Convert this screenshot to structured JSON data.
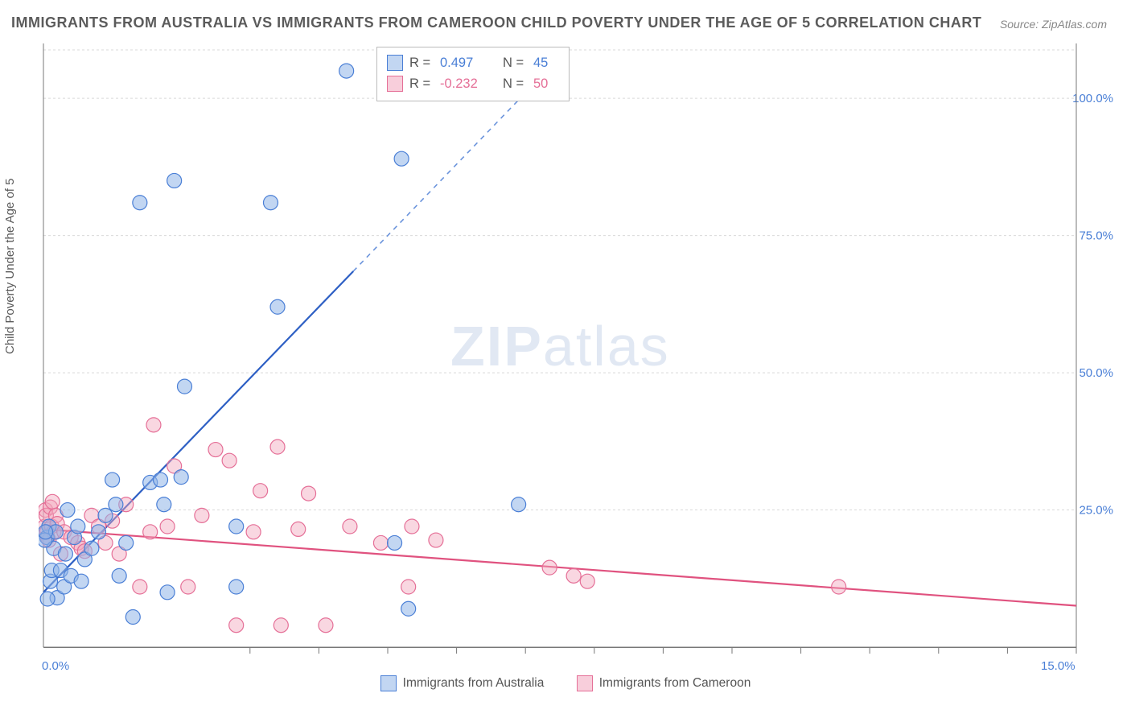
{
  "title": "IMMIGRANTS FROM AUSTRALIA VS IMMIGRANTS FROM CAMEROON CHILD POVERTY UNDER THE AGE OF 5 CORRELATION CHART",
  "source_label": "Source:",
  "source_value": "ZipAtlas.com",
  "ylabel": "Child Poverty Under the Age of 5",
  "watermark_bold": "ZIP",
  "watermark_light": "atlas",
  "chart": {
    "type": "scatter",
    "xlim": [
      0,
      15
    ],
    "ylim": [
      0,
      110
    ],
    "y_ticks": [
      25,
      50,
      75,
      100
    ],
    "y_tick_labels": [
      "25.0%",
      "50.0%",
      "75.0%",
      "100.0%"
    ],
    "x_tick_values": [
      0,
      15
    ],
    "x_tick_labels": [
      "0.0%",
      "15.0%"
    ],
    "x_minor_tick_step": 1,
    "x_minor_tick_start": 3,
    "x_minor_tick_end": 15,
    "background_color": "#ffffff",
    "grid_color": "#d9d9d9",
    "marker_radius": 9,
    "series_a": {
      "label": "Immigrants from Australia",
      "color_fill": "#8fb5e8",
      "color_stroke": "#4a7fd6",
      "R_label": "R =",
      "R": "0.497",
      "N_label": "N =",
      "N": "45",
      "reg_slope": 13.0,
      "reg_intercept": 10.0,
      "reg_solid_xmax": 4.5,
      "points": [
        [
          0.05,
          20
        ],
        [
          0.08,
          22
        ],
        [
          0.1,
          12
        ],
        [
          0.12,
          14
        ],
        [
          0.15,
          18
        ],
        [
          0.18,
          21
        ],
        [
          0.2,
          9
        ],
        [
          0.25,
          14
        ],
        [
          0.3,
          11
        ],
        [
          0.32,
          17
        ],
        [
          0.35,
          25
        ],
        [
          0.4,
          13
        ],
        [
          0.45,
          20
        ],
        [
          0.5,
          22
        ],
        [
          0.55,
          12
        ],
        [
          0.6,
          16
        ],
        [
          0.7,
          18
        ],
        [
          0.8,
          21
        ],
        [
          0.9,
          24
        ],
        [
          1.0,
          30.5
        ],
        [
          1.05,
          26
        ],
        [
          1.1,
          13
        ],
        [
          1.2,
          19
        ],
        [
          1.3,
          5.5
        ],
        [
          1.4,
          81
        ],
        [
          1.55,
          30
        ],
        [
          1.7,
          30.5
        ],
        [
          1.75,
          26
        ],
        [
          1.8,
          10
        ],
        [
          1.9,
          85
        ],
        [
          2.0,
          31
        ],
        [
          2.05,
          47.5
        ],
        [
          2.8,
          11
        ],
        [
          2.8,
          22
        ],
        [
          3.3,
          81
        ],
        [
          3.4,
          62
        ],
        [
          4.4,
          105
        ],
        [
          4.95,
          105
        ],
        [
          5.1,
          19
        ],
        [
          5.2,
          89
        ],
        [
          5.3,
          7
        ],
        [
          6.9,
          26
        ],
        [
          0.02,
          19.5
        ],
        [
          0.03,
          21
        ],
        [
          0.06,
          8.8
        ]
      ]
    },
    "series_b": {
      "label": "Immigrants from Cameroon",
      "color_fill": "#f2a6bd",
      "color_stroke": "#e56f97",
      "R_label": "R =",
      "R": "-0.232",
      "N_label": "N =",
      "N": "50",
      "reg_slope": -0.93,
      "reg_intercept": 21.5,
      "points": [
        [
          0.02,
          22
        ],
        [
          0.03,
          25
        ],
        [
          0.04,
          24
        ],
        [
          0.05,
          21
        ],
        [
          0.06,
          20
        ],
        [
          0.08,
          19.5
        ],
        [
          0.1,
          25.5
        ],
        [
          0.12,
          22
        ],
        [
          0.13,
          26.5
        ],
        [
          0.15,
          21
        ],
        [
          0.18,
          24
        ],
        [
          0.2,
          22.5
        ],
        [
          0.25,
          17
        ],
        [
          0.3,
          21
        ],
        [
          0.4,
          20
        ],
        [
          0.5,
          19
        ],
        [
          0.55,
          18
        ],
        [
          0.6,
          17.5
        ],
        [
          0.7,
          24
        ],
        [
          0.8,
          22
        ],
        [
          0.9,
          19
        ],
        [
          1.0,
          23
        ],
        [
          1.1,
          17
        ],
        [
          1.2,
          26
        ],
        [
          1.4,
          11
        ],
        [
          1.55,
          21
        ],
        [
          1.6,
          40.5
        ],
        [
          1.8,
          22
        ],
        [
          1.9,
          33
        ],
        [
          2.1,
          11
        ],
        [
          2.3,
          24
        ],
        [
          2.5,
          36
        ],
        [
          2.7,
          34
        ],
        [
          2.8,
          4
        ],
        [
          3.05,
          21
        ],
        [
          3.15,
          28.5
        ],
        [
          3.4,
          36.5
        ],
        [
          3.45,
          4
        ],
        [
          3.7,
          21.5
        ],
        [
          3.85,
          28
        ],
        [
          4.1,
          4
        ],
        [
          4.45,
          22
        ],
        [
          4.9,
          19
        ],
        [
          5.3,
          11
        ],
        [
          5.35,
          22
        ],
        [
          5.7,
          19.5
        ],
        [
          7.35,
          14.5
        ],
        [
          7.7,
          13
        ],
        [
          7.9,
          12
        ],
        [
          11.55,
          11
        ]
      ]
    }
  },
  "legend_bottom": {
    "a": "Immigrants from Australia",
    "b": "Immigrants from Cameroon"
  }
}
